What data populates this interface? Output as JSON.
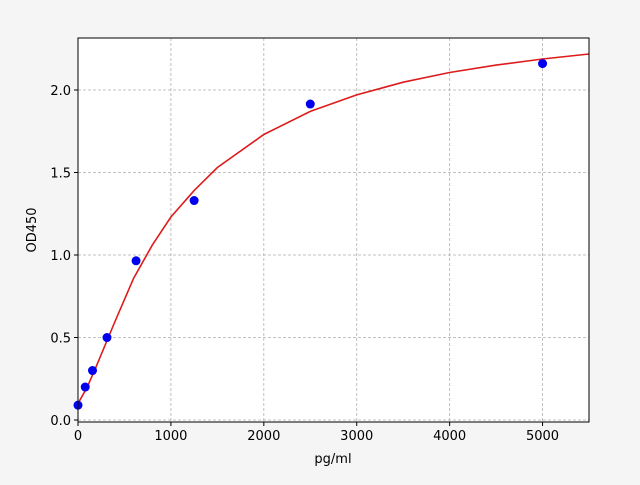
{
  "chart_data": {
    "type": "scatter",
    "title": "",
    "xlabel": "pg/ml",
    "ylabel": "OD450",
    "xlim": [
      0,
      5500
    ],
    "ylim": [
      -0.012,
      2.315
    ],
    "xticks": [
      0,
      1000,
      2000,
      3000,
      4000,
      5000
    ],
    "xtick_labels": [
      "0",
      "1000",
      "2000",
      "3000",
      "4000",
      "5000"
    ],
    "yticks": [
      0.0,
      0.5,
      1.0,
      1.5,
      2.0
    ],
    "ytick_labels": [
      "0.0",
      "0.5",
      "1.0",
      "1.5",
      "2.0"
    ],
    "grid": true,
    "points": {
      "color": "#0000ee",
      "x": [
        0,
        78,
        156,
        312,
        625,
        1250,
        2500,
        5000
      ],
      "y": [
        0.09,
        0.2,
        0.3,
        0.5,
        0.965,
        1.33,
        1.915,
        2.16
      ]
    },
    "fit_curve": {
      "type": "line",
      "color": "#dd1c1c",
      "x": [
        0,
        100,
        200,
        400,
        600,
        800,
        1000,
        1250,
        1500,
        2000,
        2500,
        3000,
        3500,
        4000,
        4500,
        5000,
        5500
      ],
      "y": [
        0.1,
        0.2,
        0.33,
        0.6,
        0.86,
        1.06,
        1.23,
        1.39,
        1.53,
        1.73,
        1.87,
        1.97,
        2.047,
        2.106,
        2.151,
        2.188,
        2.218
      ]
    }
  }
}
